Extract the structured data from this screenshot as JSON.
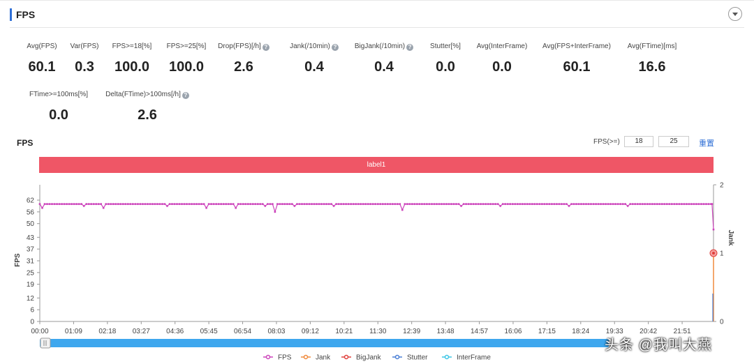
{
  "header": {
    "title": "FPS"
  },
  "metrics_row1": [
    {
      "label": "Avg(FPS)",
      "value": "60.1",
      "help": false
    },
    {
      "label": "Var(FPS)",
      "value": "0.3",
      "help": false
    },
    {
      "label": "FPS>=18[%]",
      "value": "100.0",
      "help": false
    },
    {
      "label": "FPS>=25[%]",
      "value": "100.0",
      "help": false
    },
    {
      "label": "Drop(FPS)[/h]",
      "value": "2.6",
      "help": true
    },
    {
      "label": "Jank(/10min)",
      "value": "0.4",
      "help": true
    },
    {
      "label": "BigJank(/10min)",
      "value": "0.4",
      "help": true
    },
    {
      "label": "Stutter[%]",
      "value": "0.0",
      "help": false
    },
    {
      "label": "Avg(InterFrame)",
      "value": "0.0",
      "help": false
    },
    {
      "label": "Avg(FPS+InterFrame)",
      "value": "60.1",
      "help": false
    },
    {
      "label": "Avg(FTime)[ms]",
      "value": "16.6",
      "help": false
    }
  ],
  "metrics_row2": [
    {
      "label": "FTime>=100ms[%]",
      "value": "0.0",
      "help": false
    },
    {
      "label": "Delta(FTime)>100ms[/h]",
      "value": "2.6",
      "help": true
    }
  ],
  "controls": {
    "fps_label": "FPS(>=)",
    "threshold1": "18",
    "threshold2": "25",
    "reset": "重置"
  },
  "chart_data": {
    "type": "line",
    "title": "FPS",
    "band_label": "label1",
    "xlabel": "",
    "ylabel": "FPS",
    "y2label": "Jank",
    "x_ticks": [
      "00:00",
      "01:09",
      "02:18",
      "03:27",
      "04:36",
      "05:45",
      "06:54",
      "08:03",
      "09:12",
      "10:21",
      "11:30",
      "12:39",
      "13:48",
      "14:57",
      "16:06",
      "17:15",
      "18:24",
      "19:33",
      "20:42",
      "21:51"
    ],
    "y_ticks": [
      0,
      6,
      12,
      19,
      25,
      31,
      37,
      43,
      50,
      56,
      62
    ],
    "ylim": [
      0,
      62
    ],
    "y2_ticks": [
      0,
      1,
      2
    ],
    "y2lim": [
      0,
      2
    ],
    "x_range_seconds": [
      0,
      1375
    ],
    "series": [
      {
        "name": "FPS",
        "color": "#cc44bb",
        "baseline": 60,
        "dips": [
          [
            5,
            58
          ],
          [
            12,
            57
          ],
          [
            90,
            59
          ],
          [
            130,
            58
          ],
          [
            260,
            59
          ],
          [
            340,
            58
          ],
          [
            400,
            58
          ],
          [
            460,
            59
          ],
          [
            480,
            56
          ],
          [
            520,
            59
          ],
          [
            600,
            59
          ],
          [
            740,
            57
          ],
          [
            860,
            59
          ],
          [
            940,
            59
          ],
          [
            1080,
            59
          ],
          [
            1200,
            59
          ]
        ],
        "end": [
          [
            1372,
            60
          ],
          [
            1375,
            47
          ]
        ]
      },
      {
        "name": "Jank",
        "color": "#f08a3c",
        "points": [
          [
            1375,
            1
          ]
        ]
      },
      {
        "name": "BigJank",
        "color": "#e0403c",
        "points": [
          [
            1375,
            1
          ]
        ]
      },
      {
        "name": "Stutter",
        "color": "#4a7fd6",
        "points": []
      },
      {
        "name": "InterFrame",
        "color": "#3cc6e6",
        "points": []
      }
    ],
    "grid": false,
    "legend": "bottom"
  },
  "watermark": "头条 @我叫大燕"
}
